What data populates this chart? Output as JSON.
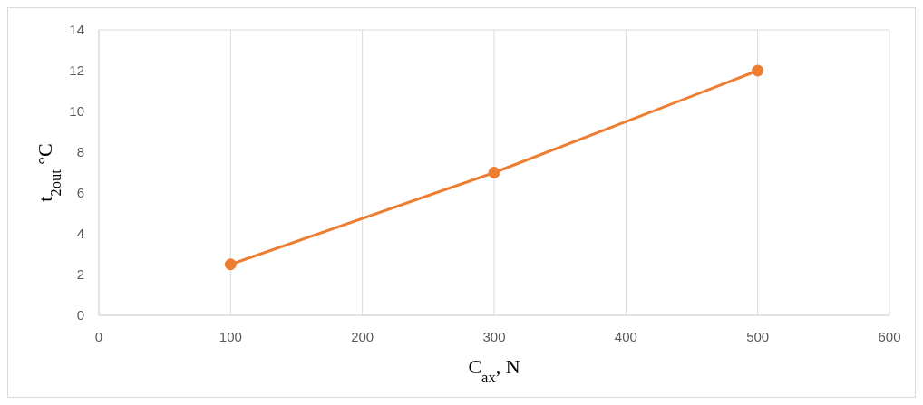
{
  "chart_data": {
    "type": "line",
    "x": [
      100,
      300,
      500
    ],
    "series": [
      {
        "color": "#ed7d31",
        "values": [
          2.5,
          7,
          12
        ]
      }
    ],
    "xlabel": "C$_{ax}$, N",
    "ylabel": "t$_{2out}$  °C",
    "xlim": [
      0,
      600
    ],
    "xticks": [
      0,
      100,
      200,
      300,
      400,
      500,
      600
    ],
    "ylim": [
      0,
      14
    ],
    "yticks": [
      0,
      2,
      4,
      6,
      8,
      10,
      12,
      14
    ],
    "grid": true,
    "marker": "circle",
    "line_style": "solid"
  }
}
